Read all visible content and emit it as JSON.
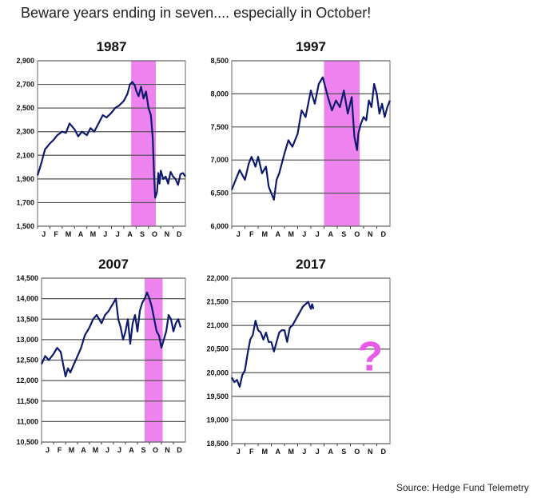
{
  "headline": "Beware years ending in seven.... especially in October!",
  "source": "Source: Hedge Fund Telemetry",
  "colors": {
    "line": "#0d1a6e",
    "highlight": "#ee82ee",
    "grid": "#555555",
    "question": "#e85be8"
  },
  "chart_data": [
    {
      "type": "line",
      "title": "1987",
      "xlabels": [
        "J",
        "F",
        "M",
        "A",
        "M",
        "J",
        "J",
        "A",
        "S",
        "O",
        "N",
        "D"
      ],
      "yticks": [
        1500,
        1700,
        1900,
        2100,
        2300,
        2500,
        2700,
        2900
      ],
      "ytick_labels": [
        "1,500",
        "1,700",
        "1,900",
        "2,100",
        "2,300",
        "2,500",
        "2,700",
        "2,900"
      ],
      "ylim": [
        1500,
        2900
      ],
      "highlight": [
        7.6,
        9.6
      ],
      "series": [
        {
          "x": [
            0,
            0.3,
            0.6,
            1,
            1.3,
            1.6,
            2,
            2.3,
            2.6,
            3,
            3.3,
            3.6,
            4,
            4.3,
            4.6,
            5,
            5.3,
            5.6,
            6,
            6.3,
            6.6,
            7,
            7.3,
            7.5,
            7.7,
            7.9,
            8,
            8.2,
            8.4,
            8.6,
            8.8,
            9,
            9.2,
            9.35,
            9.45,
            9.55,
            9.7,
            9.8,
            9.9,
            10,
            10.2,
            10.4,
            10.6,
            10.8,
            11,
            11.2,
            11.4,
            11.6,
            11.8,
            12
          ],
          "y": [
            1930,
            2030,
            2150,
            2200,
            2230,
            2270,
            2300,
            2290,
            2370,
            2320,
            2260,
            2300,
            2270,
            2330,
            2300,
            2380,
            2440,
            2420,
            2460,
            2500,
            2520,
            2560,
            2620,
            2700,
            2720,
            2690,
            2650,
            2600,
            2680,
            2580,
            2640,
            2500,
            2440,
            2250,
            1950,
            1740,
            1790,
            1950,
            1860,
            1970,
            1900,
            1920,
            1860,
            1960,
            1920,
            1900,
            1850,
            1940,
            1950,
            1920
          ]
        }
      ]
    },
    {
      "type": "line",
      "title": "1997",
      "xlabels": [
        "J",
        "F",
        "M",
        "A",
        "M",
        "J",
        "J",
        "A",
        "S",
        "O",
        "N",
        "D"
      ],
      "yticks": [
        6000,
        6500,
        7000,
        7500,
        8000,
        8500
      ],
      "ytick_labels": [
        "6,000",
        "6,500",
        "7,000",
        "7,500",
        "8,000",
        "8,500"
      ],
      "ylim": [
        6000,
        8500
      ],
      "highlight": [
        7.0,
        9.7
      ],
      "series": [
        {
          "x": [
            0,
            0.3,
            0.6,
            1,
            1.3,
            1.5,
            1.8,
            2,
            2.3,
            2.6,
            2.8,
            3,
            3.2,
            3.4,
            3.6,
            4,
            4.3,
            4.6,
            5,
            5.3,
            5.6,
            6,
            6.3,
            6.6,
            6.9,
            7.1,
            7.3,
            7.6,
            7.9,
            8.2,
            8.5,
            8.8,
            9.1,
            9.3,
            9.5,
            9.6,
            9.8,
            10,
            10.2,
            10.4,
            10.6,
            10.8,
            11,
            11.2,
            11.4,
            11.6,
            11.8,
            12
          ],
          "y": [
            6550,
            6700,
            6850,
            6700,
            6950,
            7050,
            6900,
            7050,
            6800,
            6900,
            6600,
            6500,
            6400,
            6700,
            6800,
            7100,
            7300,
            7200,
            7400,
            7750,
            7650,
            8050,
            7850,
            8150,
            8250,
            8100,
            7950,
            7750,
            7900,
            7800,
            8050,
            7700,
            7950,
            7350,
            7150,
            7400,
            7550,
            7650,
            7600,
            7900,
            7800,
            8150,
            8000,
            7700,
            7850,
            7650,
            7800,
            7900
          ]
        }
      ]
    },
    {
      "type": "line",
      "title": "2007",
      "xlabels": [
        "J",
        "F",
        "M",
        "A",
        "M",
        "J",
        "J",
        "A",
        "S",
        "O",
        "N",
        "D"
      ],
      "yticks": [
        10500,
        11000,
        11500,
        12000,
        12500,
        13000,
        13500,
        14000,
        14500
      ],
      "ytick_labels": [
        "10,500",
        "11,000",
        "11,500",
        "12,000",
        "12,500",
        "13,000",
        "13,500",
        "14,000",
        "14,500"
      ],
      "ylim": [
        10500,
        14500
      ],
      "highlight": [
        8.6,
        10.1
      ],
      "series": [
        {
          "x": [
            0,
            0.3,
            0.6,
            1,
            1.3,
            1.6,
            1.8,
            2,
            2.2,
            2.4,
            2.7,
            3,
            3.3,
            3.6,
            4,
            4.3,
            4.6,
            5,
            5.3,
            5.6,
            6,
            6.2,
            6.4,
            6.6,
            6.8,
            7,
            7.2,
            7.4,
            7.6,
            7.8,
            8,
            8.2,
            8.4,
            8.6,
            8.8,
            9,
            9.2,
            9.4,
            9.6,
            9.8,
            10,
            10.2,
            10.4,
            10.6,
            10.8,
            11,
            11.2,
            11.4,
            11.6
          ],
          "y": [
            12400,
            12600,
            12500,
            12650,
            12800,
            12700,
            12400,
            12100,
            12300,
            12200,
            12400,
            12600,
            12800,
            13100,
            13300,
            13500,
            13600,
            13400,
            13600,
            13700,
            13900,
            14000,
            13500,
            13300,
            13000,
            13200,
            13500,
            12900,
            13400,
            13600,
            13200,
            13700,
            13900,
            14000,
            14150,
            14000,
            13800,
            13500,
            13200,
            13100,
            12800,
            13000,
            13200,
            13600,
            13500,
            13200,
            13400,
            13500,
            13300
          ]
        }
      ]
    },
    {
      "type": "line",
      "title": "2017",
      "xlabels": [
        "J",
        "F",
        "M",
        "A",
        "M",
        "J",
        "J",
        "A",
        "S",
        "O",
        "N",
        "D"
      ],
      "yticks": [
        18500,
        19000,
        19500,
        20000,
        20500,
        21000,
        21500,
        22000
      ],
      "ytick_labels": [
        "18,500",
        "19,000",
        "19,500",
        "20,000",
        "20,500",
        "21,000",
        "21,500",
        "22,000"
      ],
      "ylim": [
        18500,
        22000
      ],
      "highlight": null,
      "annotation": "?",
      "series": [
        {
          "x": [
            0,
            0.2,
            0.4,
            0.6,
            0.8,
            1,
            1.2,
            1.4,
            1.6,
            1.8,
            2,
            2.2,
            2.4,
            2.6,
            2.8,
            3,
            3.2,
            3.4,
            3.6,
            3.8,
            4,
            4.2,
            4.4,
            4.6,
            4.8,
            5,
            5.2,
            5.4,
            5.6,
            5.8,
            6,
            6.1,
            6.2
          ],
          "y": [
            19900,
            19800,
            19850,
            19700,
            19950,
            20050,
            20400,
            20700,
            20800,
            21100,
            20900,
            20850,
            20700,
            20850,
            20650,
            20650,
            20450,
            20650,
            20850,
            20900,
            20900,
            20650,
            20950,
            21000,
            21100,
            21200,
            21300,
            21400,
            21450,
            21500,
            21350,
            21450,
            21350
          ]
        }
      ]
    }
  ]
}
